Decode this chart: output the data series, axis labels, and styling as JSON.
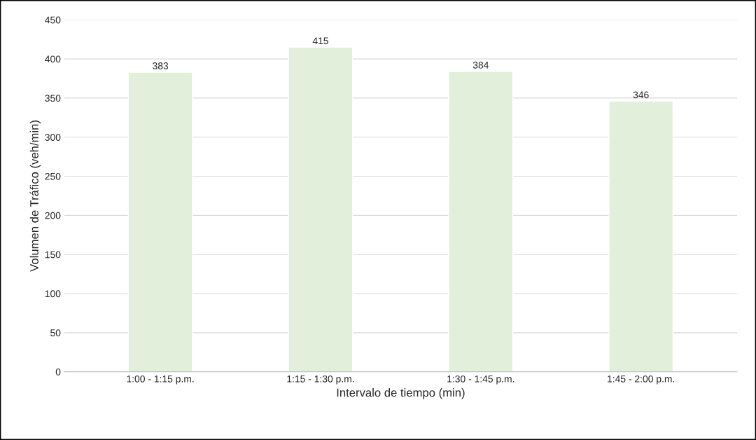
{
  "chart_data": {
    "type": "bar",
    "xlabel": "Intervalo de tiempo (min)",
    "ylabel": "Volumen de Tráfico (veh/min)",
    "categories": [
      "1:00 - 1:15 p.m.",
      "1:15 - 1:30 p.m.",
      "1:30 - 1:45 p.m.",
      "1:45 - 2:00 p.m."
    ],
    "values": [
      383,
      415,
      384,
      346
    ],
    "color": "#e2efda",
    "ylim": [
      0,
      450
    ],
    "yticks": [
      0,
      50,
      100,
      150,
      200,
      250,
      300,
      350,
      400,
      450
    ],
    "grid": "y",
    "data_labels": true
  }
}
